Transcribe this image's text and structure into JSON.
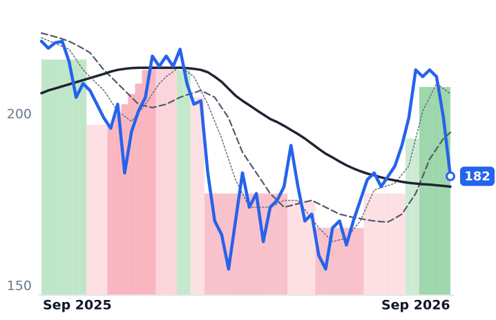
{
  "chart_data": {
    "type": "line",
    "categories": [
      "Sep 2025",
      null,
      null,
      null,
      null,
      null,
      null,
      null,
      null,
      null,
      null,
      null,
      null,
      null,
      null,
      null,
      null,
      null,
      null,
      null,
      null,
      null,
      null,
      null,
      null,
      null,
      null,
      null,
      null,
      null,
      null,
      null,
      null,
      null,
      null,
      null,
      null,
      null,
      null,
      null,
      null,
      null,
      null,
      null,
      null,
      null,
      null,
      null,
      null,
      null,
      null,
      null,
      null,
      null,
      "Sep 2026",
      null,
      null,
      null,
      null,
      null
    ],
    "ylim": [
      147.4,
      225.3
    ],
    "yticks": [
      150,
      200
    ],
    "series": [
      {
        "color": "#2563eb",
        "style": "solid",
        "values": [
          221.3,
          219.3,
          220.9,
          221.3,
          215.3,
          205,
          209,
          207,
          203,
          199,
          196,
          203,
          183,
          195,
          201,
          205,
          217,
          214,
          217,
          214,
          219,
          209,
          203,
          204,
          183,
          169,
          165,
          155,
          169,
          183,
          173,
          177,
          163,
          173,
          175,
          179,
          191,
          179,
          169,
          171,
          159,
          155,
          167,
          169,
          162,
          169,
          175,
          181,
          183,
          179,
          182,
          185,
          191,
          199,
          213,
          211,
          213,
          211,
          199,
          182
        ]
      },
      {
        "color": "#1e2433",
        "style": "thick",
        "values": [
          206.2,
          207,
          207.6,
          208.2,
          208.8,
          209.4,
          210,
          210.6,
          211.2,
          211.8,
          212.5,
          213,
          213.3,
          213.5,
          213.6,
          213.6,
          213.6,
          213.6,
          213.6,
          213.6,
          213.6,
          213.5,
          213.3,
          213,
          212.3,
          211,
          209.5,
          207.5,
          205.5,
          204,
          202.7,
          201.3,
          200,
          198.7,
          197.8,
          196.7,
          195.5,
          194.3,
          193,
          191.5,
          190,
          188.6,
          187.5,
          186.3,
          185.2,
          184.3,
          183.5,
          182.8,
          182.3,
          181.7,
          181.2,
          180.8,
          180.4,
          180.1,
          179.9,
          179.7,
          179.6,
          179.4,
          179.2,
          179
        ]
      },
      {
        "color": "#525a6b",
        "style": "dashed",
        "values": [
          223.7,
          223.2,
          222.6,
          222,
          221.3,
          220.3,
          219.2,
          218,
          215.5,
          213,
          211,
          209,
          207,
          205,
          203,
          202.5,
          202,
          202.5,
          203,
          204,
          205,
          205.7,
          206.3,
          207,
          206,
          205,
          202,
          199,
          194,
          189,
          186,
          183,
          180,
          177,
          175,
          173,
          173.5,
          174,
          174.5,
          175,
          174,
          173,
          172,
          171,
          170.5,
          170,
          169.7,
          169.3,
          169,
          168.8,
          168.7,
          169.8,
          171,
          174,
          177,
          182,
          187,
          190,
          193,
          194.8
        ]
      },
      {
        "color": "#6b7280",
        "style": "dotted",
        "values": [
          222.3,
          221.5,
          220.7,
          219.8,
          219,
          216,
          213,
          211,
          209,
          207,
          204,
          201,
          199.5,
          198,
          200.5,
          203,
          206,
          209,
          211,
          212.5,
          214,
          212.5,
          211,
          207,
          203,
          198,
          193,
          187,
          181,
          177,
          173,
          173,
          173,
          173,
          174,
          175,
          175,
          175,
          172.3,
          169.7,
          167,
          165,
          163,
          163.5,
          164,
          166.5,
          169,
          173.5,
          178,
          178.7,
          179.3,
          180,
          182.5,
          185,
          193,
          201,
          205,
          209,
          207.5,
          206
        ]
      }
    ],
    "shade": {
      "values": [
        216,
        216,
        216,
        216,
        216,
        216,
        216,
        197,
        197,
        197,
        197,
        200,
        203,
        206,
        209,
        213,
        214,
        214,
        214,
        214,
        213,
        213,
        205,
        205,
        177,
        177,
        177,
        177,
        177,
        177,
        177,
        177,
        177,
        177,
        177,
        177,
        175,
        175,
        175,
        175,
        167,
        167,
        167,
        167,
        167,
        167,
        167,
        177,
        177,
        177,
        177,
        177,
        177,
        193,
        193,
        208,
        208,
        208,
        208,
        208
      ],
      "colors": [
        "#bfe6c8",
        "#bfe6c8",
        "#bfe6c8",
        "#bfe6c8",
        "#bfe6c8",
        "#bfe6c8",
        "#bfe6c8",
        "#fde0e4",
        "#fde0e4",
        "#fde0e4",
        "#f9b6c1",
        "#f9b6c1",
        "#f9b6c1",
        "#f9b6c1",
        "#f9b6c1",
        "#f9b6c1",
        "#f9b6c1",
        "#fcd5dc",
        "#fcd5dc",
        "#fcd5dc",
        "#c4e8cc",
        "#c4e8cc",
        "#fde0e4",
        "#fde0e4",
        "#f8c1cb",
        "#f8c1cb",
        "#f8c1cb",
        "#f8c1cb",
        "#f8c1cb",
        "#f8c1cb",
        "#f8c1cb",
        "#f8c1cb",
        "#f8c1cb",
        "#f8c1cb",
        "#f8c1cb",
        "#f8c1cb",
        "#fde0e4",
        "#fde0e4",
        "#fde0e4",
        "#fde0e4",
        "#f8c1cb",
        "#f8c1cb",
        "#f8c1cb",
        "#f8c1cb",
        "#f8c1cb",
        "#f8c1cb",
        "#f8c1cb",
        "#fde0e4",
        "#fde0e4",
        "#fde0e4",
        "#fde0e4",
        "#fde0e4",
        "#fde0e4",
        "#cdebd4",
        "#cdebd4",
        "#9ed7ab",
        "#9ed7ab",
        "#9ed7ab",
        "#9ed7ab",
        "#9ed7ab"
      ]
    }
  }
}
